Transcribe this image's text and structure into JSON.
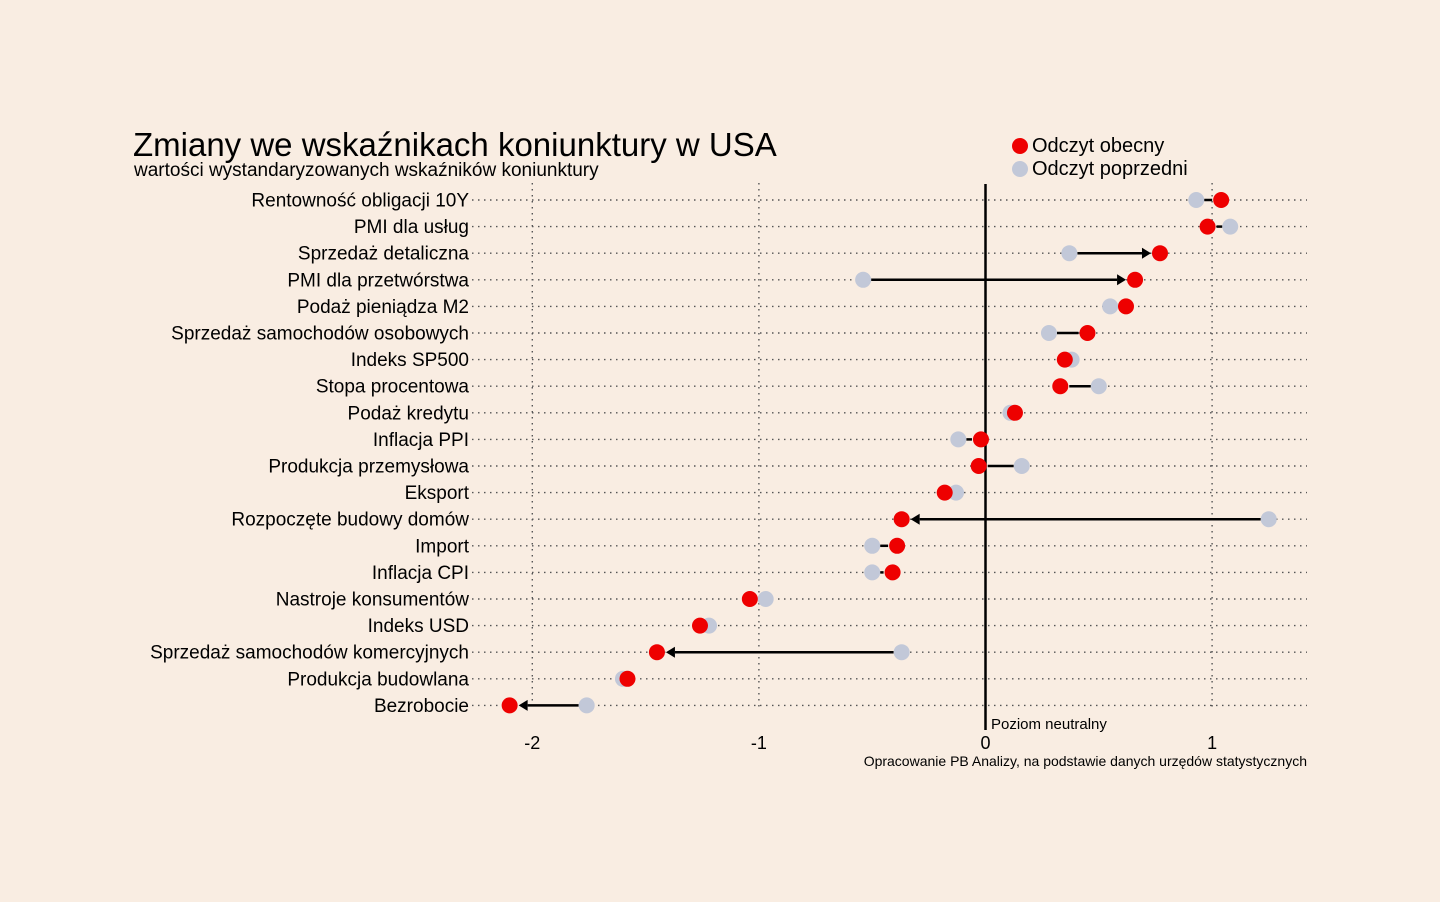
{
  "chart_data": {
    "type": "dumbbell",
    "title": "Zmiany we wskaźnikach koniunktury w USA",
    "subtitle": "wartości wystandaryzowanych wskaźników koniunktury",
    "legend": {
      "position": "top-right",
      "current_label": "Odczyt obecny",
      "previous_label": "Odczyt poprzedni"
    },
    "colors": {
      "current": "#ee0000",
      "previous": "#c2c8d8",
      "background": "#f9ede2",
      "line": "#000000"
    },
    "neutral_label": "Poziom neutralny",
    "source": "Opracowanie PB Analizy, na podstawie danych urzędów statystycznych",
    "xlim": [
      -2.25,
      1.41
    ],
    "xticks": [
      -2,
      -1,
      0,
      1
    ],
    "xtick_labels": [
      "-2",
      "-1",
      "0",
      "1"
    ],
    "categories": [
      "Rentowność obligacji 10Y",
      "PMI dla usług",
      "Sprzedaż detaliczna",
      "PMI dla przetwórstwa",
      "Podaż pieniądza M2",
      "Sprzedaż samochodów osobowych",
      "Indeks SP500",
      "Stopa procentowa",
      "Podaż kredytu",
      "Inflacja PPI",
      "Produkcja przemysłowa",
      "Eksport",
      "Rozpoczęte budowy domów",
      "Import",
      "Inflacja CPI",
      "Nastroje konsumentów",
      "Indeks USD",
      "Sprzedaż samochodów komercyjnych",
      "Produkcja budowlana",
      "Bezrobocie"
    ],
    "series": [
      {
        "name": "Odczyt obecny",
        "values": [
          1.04,
          0.98,
          0.77,
          0.66,
          0.62,
          0.45,
          0.35,
          0.33,
          0.13,
          -0.02,
          -0.03,
          -0.18,
          -0.37,
          -0.39,
          -0.41,
          -1.04,
          -1.26,
          -1.45,
          -1.58,
          -2.1
        ]
      },
      {
        "name": "Odczyt poprzedni",
        "values": [
          0.93,
          1.08,
          0.37,
          -0.54,
          0.55,
          0.28,
          0.38,
          0.5,
          0.11,
          -0.12,
          0.16,
          -0.13,
          1.25,
          -0.5,
          -0.5,
          -0.97,
          -1.22,
          -0.37,
          -1.6,
          -1.76
        ]
      }
    ]
  }
}
